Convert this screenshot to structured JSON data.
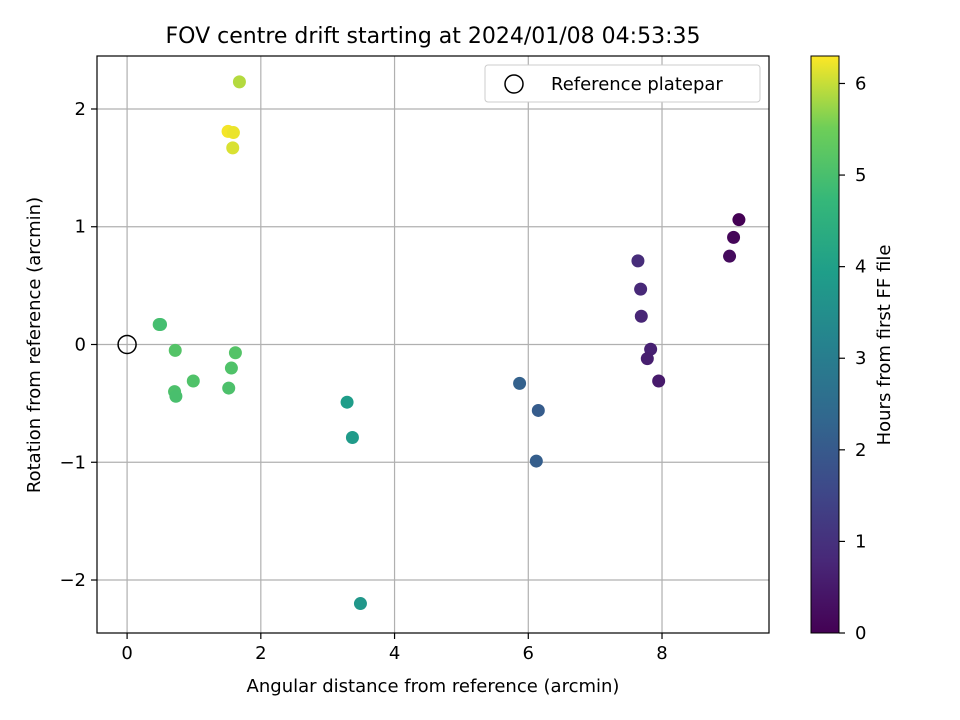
{
  "chart_data": {
    "type": "scatter",
    "title": "FOV centre drift starting at 2024/01/08 04:53:35",
    "xlabel": "Angular distance from reference (arcmin)",
    "ylabel": "Rotation from reference (arcmin)",
    "xlim": [
      -0.45,
      9.6
    ],
    "ylim": [
      -2.45,
      2.45
    ],
    "xticks": [
      0,
      2,
      4,
      6,
      8
    ],
    "yticks": [
      -2,
      -1,
      0,
      1,
      2
    ],
    "grid": true,
    "legend": {
      "placement": "top-right",
      "entries": [
        {
          "label": "Reference platepar",
          "marker": "open-circle"
        }
      ]
    },
    "colorbar": {
      "label": "Hours from first FF file",
      "range": [
        0,
        6.3
      ],
      "ticks": [
        0,
        1,
        2,
        3,
        4,
        5,
        6
      ],
      "colormap": "viridis"
    },
    "reference_point": {
      "x": 0,
      "y": 0
    },
    "points": [
      {
        "x": 9.15,
        "y": 1.06,
        "hours": 0.0
      },
      {
        "x": 9.07,
        "y": 0.91,
        "hours": 0.1
      },
      {
        "x": 9.01,
        "y": 0.75,
        "hours": 0.2
      },
      {
        "x": 7.64,
        "y": 0.71,
        "hours": 0.9
      },
      {
        "x": 7.68,
        "y": 0.47,
        "hours": 0.8
      },
      {
        "x": 7.69,
        "y": 0.24,
        "hours": 0.75
      },
      {
        "x": 7.83,
        "y": -0.04,
        "hours": 0.65
      },
      {
        "x": 7.78,
        "y": -0.12,
        "hours": 0.6
      },
      {
        "x": 7.95,
        "y": -0.31,
        "hours": 0.5
      },
      {
        "x": 5.87,
        "y": -0.33,
        "hours": 2.2
      },
      {
        "x": 6.15,
        "y": -0.56,
        "hours": 2.05
      },
      {
        "x": 6.12,
        "y": -0.99,
        "hours": 2.1
      },
      {
        "x": 3.29,
        "y": -0.49,
        "hours": 3.9
      },
      {
        "x": 3.37,
        "y": -0.79,
        "hours": 3.85
      },
      {
        "x": 3.49,
        "y": -2.2,
        "hours": 3.75
      },
      {
        "x": 0.48,
        "y": 0.17,
        "hours": 5.0
      },
      {
        "x": 0.5,
        "y": 0.17,
        "hours": 4.95
      },
      {
        "x": 0.72,
        "y": -0.05,
        "hours": 5.15
      },
      {
        "x": 0.71,
        "y": -0.4,
        "hours": 5.05
      },
      {
        "x": 0.73,
        "y": -0.44,
        "hours": 5.0
      },
      {
        "x": 0.99,
        "y": -0.31,
        "hours": 5.1
      },
      {
        "x": 1.52,
        "y": -0.37,
        "hours": 5.05
      },
      {
        "x": 1.56,
        "y": -0.2,
        "hours": 5.1
      },
      {
        "x": 1.62,
        "y": -0.07,
        "hours": 5.15
      },
      {
        "x": 1.51,
        "y": 1.81,
        "hours": 6.25
      },
      {
        "x": 1.59,
        "y": 1.8,
        "hours": 6.2
      },
      {
        "x": 1.58,
        "y": 1.67,
        "hours": 6.1
      },
      {
        "x": 1.68,
        "y": 2.23,
        "hours": 5.9
      }
    ]
  }
}
